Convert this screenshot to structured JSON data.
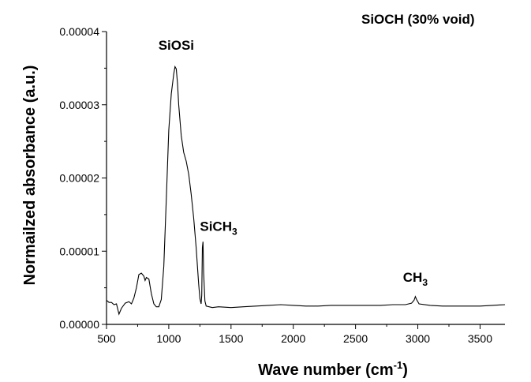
{
  "chart_data": {
    "type": "line",
    "title": "SiOCH (30% void)",
    "xlabel": "Wave number (cm",
    "xlabel_sup": "-1",
    "xlabel_end": ")",
    "ylabel": "Normailzed absorbance (a.u.)",
    "xlim": [
      500,
      3700
    ],
    "ylim": [
      0,
      4e-05
    ],
    "x_ticks": [
      500,
      1000,
      1500,
      2000,
      2500,
      3000,
      3500
    ],
    "x_tick_labels": [
      "500",
      "1000",
      "1500",
      "2000",
      "2500",
      "3000",
      "3500"
    ],
    "y_ticks": [
      0,
      1e-05,
      2e-05,
      3e-05,
      4e-05
    ],
    "y_tick_labels": [
      "0.00000",
      "0.00001",
      "0.00002",
      "0.00003",
      "0.00004"
    ],
    "annotations": [
      {
        "text": "SiOSi",
        "sub": "",
        "x": 1060,
        "y": 3.75e-05
      },
      {
        "text": "SiCH",
        "sub": "3",
        "x": 1400,
        "y": 1.28e-05
      },
      {
        "text": "CH",
        "sub": "3",
        "x": 2980,
        "y": 5.8e-06
      }
    ],
    "series": [
      {
        "x": [
          500,
          520,
          540,
          560,
          580,
          600,
          620,
          650,
          680,
          700,
          720,
          740,
          760,
          780,
          800,
          810,
          820,
          840,
          860,
          880,
          900,
          920,
          940,
          960,
          980,
          1000,
          1020,
          1040,
          1050,
          1060,
          1070,
          1080,
          1100,
          1120,
          1140,
          1160,
          1180,
          1200,
          1220,
          1240,
          1250,
          1260,
          1265,
          1270,
          1275,
          1280,
          1290,
          1300,
          1350,
          1400,
          1500,
          1600,
          1700,
          1800,
          1900,
          2000,
          2100,
          2200,
          2300,
          2400,
          2500,
          2600,
          2700,
          2800,
          2900,
          2950,
          2970,
          2980,
          2990,
          3010,
          3100,
          3200,
          3300,
          3400,
          3500,
          3600,
          3700
        ],
        "y": [
          3.3e-06,
          3e-06,
          3e-06,
          2.7e-06,
          2.8e-06,
          1.4e-06,
          2.2e-06,
          2.9e-06,
          3.1e-06,
          2.8e-06,
          3.6e-06,
          5e-06,
          6.8e-06,
          7e-06,
          6.6e-06,
          6e-06,
          6.4e-06,
          6.2e-06,
          4.2e-06,
          2.8e-06,
          2.4e-06,
          2.4e-06,
          3.4e-06,
          7.9e-06,
          1.72e-05,
          2.65e-05,
          3.15e-05,
          3.42e-05,
          3.52e-05,
          3.49e-05,
          3.29e-05,
          3e-05,
          2.58e-05,
          2.35e-05,
          2.23e-05,
          2.05e-05,
          1.78e-05,
          1.45e-05,
          1.05e-05,
          5.5e-06,
          3.5e-06,
          2.8e-06,
          4e-06,
          1.05e-05,
          1.13e-05,
          7e-06,
          3.2e-06,
          2.5e-06,
          2.3e-06,
          2.4e-06,
          2.3e-06,
          2.4e-06,
          2.5e-06,
          2.6e-06,
          2.7e-06,
          2.6e-06,
          2.5e-06,
          2.5e-06,
          2.6e-06,
          2.6e-06,
          2.6e-06,
          2.6e-06,
          2.6e-06,
          2.7e-06,
          2.7e-06,
          2.9e-06,
          3.3e-06,
          3.8e-06,
          3.4e-06,
          2.8e-06,
          2.6e-06,
          2.5e-06,
          2.5e-06,
          2.5e-06,
          2.5e-06,
          2.6e-06,
          2.7e-06
        ]
      }
    ],
    "grid": false,
    "legend": "none"
  }
}
